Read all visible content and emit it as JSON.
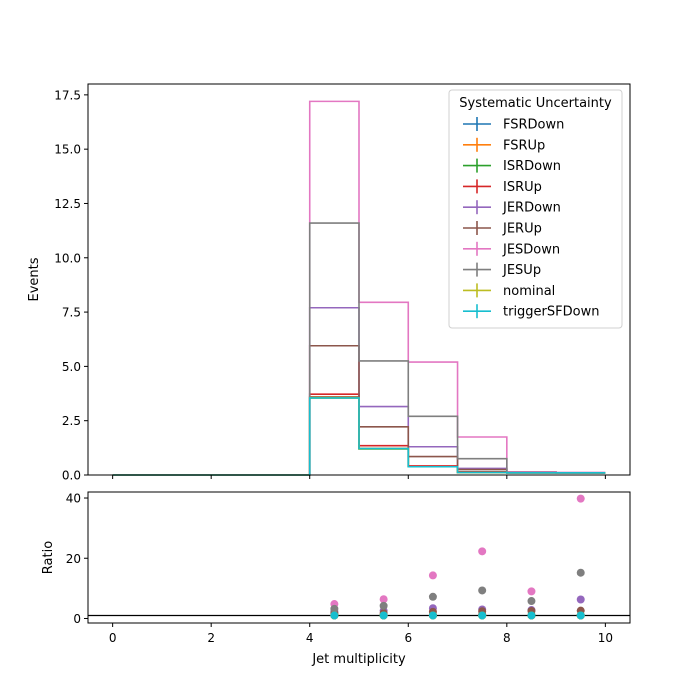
{
  "chart_data": [
    {
      "type": "line",
      "panel": "main",
      "drawstyle": "steps-post",
      "title": "",
      "xlabel": "",
      "ylabel": "Events",
      "xlim": [
        -0.5,
        10.5
      ],
      "ylim": [
        0,
        18.0
      ],
      "bin_edges": [
        0,
        1,
        2,
        3,
        4,
        5,
        6,
        7,
        8,
        9,
        10
      ],
      "x_ticks": [
        0,
        2,
        4,
        6,
        8,
        10
      ],
      "x_tick_labels": [
        "",
        "",
        "",
        "",
        "",
        ""
      ],
      "y_ticks": [
        0,
        2.5,
        5,
        7.5,
        10,
        12.5,
        15,
        17.5
      ],
      "y_tick_labels": [
        "0.0",
        "2.5",
        "5.0",
        "7.5",
        "10.0",
        "12.5",
        "15.0",
        "17.5"
      ],
      "grid": false,
      "legend": {
        "title": "Systematic Uncertainty",
        "placement": "top-right"
      },
      "series": [
        {
          "name": "FSRDown",
          "color": "#1f77b4",
          "values": [
            0,
            0,
            0,
            0,
            3.6,
            1.22,
            0.4,
            0.12,
            0.1,
            0.1
          ]
        },
        {
          "name": "FSRUp",
          "color": "#ff7f0e",
          "values": [
            0,
            0,
            0,
            0,
            3.58,
            1.22,
            0.4,
            0.12,
            0.1,
            0.1
          ]
        },
        {
          "name": "ISRDown",
          "color": "#2ca02c",
          "values": [
            0,
            0,
            0,
            0,
            3.55,
            1.2,
            0.38,
            0.12,
            0.1,
            0.1
          ]
        },
        {
          "name": "ISRUp",
          "color": "#d62728",
          "values": [
            0,
            0,
            0,
            0,
            3.72,
            1.35,
            0.42,
            0.15,
            0.1,
            0.1
          ]
        },
        {
          "name": "JERDown",
          "color": "#9467bd",
          "values": [
            0,
            0,
            0,
            0,
            7.7,
            3.15,
            1.3,
            0.3,
            0.12,
            0.1
          ]
        },
        {
          "name": "JERUp",
          "color": "#8c564b",
          "values": [
            0,
            0,
            0,
            0,
            5.95,
            2.22,
            0.85,
            0.25,
            0.12,
            0.1
          ]
        },
        {
          "name": "JESDown",
          "color": "#e377c2",
          "values": [
            0,
            0,
            0,
            0,
            17.2,
            7.95,
            5.2,
            1.75,
            0.15,
            0.12
          ]
        },
        {
          "name": "JESUp",
          "color": "#7f7f7f",
          "values": [
            0,
            0,
            0,
            0,
            11.6,
            5.25,
            2.7,
            0.75,
            0.12,
            0.1
          ]
        },
        {
          "name": "nominal",
          "color": "#bcbd22",
          "values": [
            0,
            0,
            0,
            0,
            3.55,
            1.22,
            0.38,
            0.12,
            0.1,
            0.1
          ]
        },
        {
          "name": "triggerSFDown",
          "color": "#17becf",
          "values": [
            0,
            0,
            0,
            0,
            3.55,
            1.22,
            0.38,
            0.12,
            0.1,
            0.1
          ]
        }
      ]
    },
    {
      "type": "scatter",
      "panel": "ratio",
      "title": "",
      "xlabel": "Jet multiplicity",
      "ylabel": "Ratio",
      "xlim": [
        -0.5,
        10.5
      ],
      "ylim": [
        -1.5,
        42
      ],
      "reference_line": 1,
      "x_ticks": [
        0,
        2,
        4,
        6,
        8,
        10
      ],
      "x_tick_labels": [
        "0",
        "2",
        "4",
        "6",
        "8",
        "10"
      ],
      "y_ticks": [
        0,
        20,
        40
      ],
      "y_tick_labels": [
        "0",
        "20",
        "40"
      ],
      "grid": false,
      "x": [
        4.5,
        5.5,
        6.5,
        7.5,
        8.5,
        9.5
      ],
      "series": [
        {
          "name": "FSRDown",
          "color": "#1f77b4",
          "values": [
            1.0,
            1.0,
            1.0,
            1.0,
            1.0,
            1.0
          ]
        },
        {
          "name": "FSRUp",
          "color": "#ff7f0e",
          "values": [
            1.0,
            1.0,
            1.05,
            1.0,
            1.0,
            1.0
          ]
        },
        {
          "name": "ISRDown",
          "color": "#2ca02c",
          "values": [
            1.0,
            1.0,
            1.0,
            1.0,
            1.0,
            1.0
          ]
        },
        {
          "name": "ISRUp",
          "color": "#d62728",
          "values": [
            1.05,
            1.1,
            1.1,
            1.2,
            1.0,
            1.0
          ]
        },
        {
          "name": "JERDown",
          "color": "#9467bd",
          "values": [
            2.2,
            2.6,
            3.4,
            3.0,
            2.8,
            6.3
          ]
        },
        {
          "name": "JERUp",
          "color": "#8c564b",
          "values": [
            1.7,
            1.8,
            2.2,
            2.4,
            2.5,
            2.6
          ]
        },
        {
          "name": "JESDown",
          "color": "#e377c2",
          "values": [
            4.8,
            6.4,
            14.3,
            22.3,
            9.0,
            39.8
          ]
        },
        {
          "name": "JESUp",
          "color": "#7f7f7f",
          "values": [
            3.2,
            4.2,
            7.2,
            9.3,
            5.8,
            15.2
          ]
        },
        {
          "name": "nominal",
          "color": "#bcbd22",
          "values": [
            1.0,
            1.0,
            1.0,
            1.0,
            1.0,
            1.0
          ]
        },
        {
          "name": "triggerSFDown",
          "color": "#17becf",
          "values": [
            1.0,
            1.0,
            1.0,
            1.0,
            1.0,
            1.0
          ]
        }
      ]
    }
  ]
}
